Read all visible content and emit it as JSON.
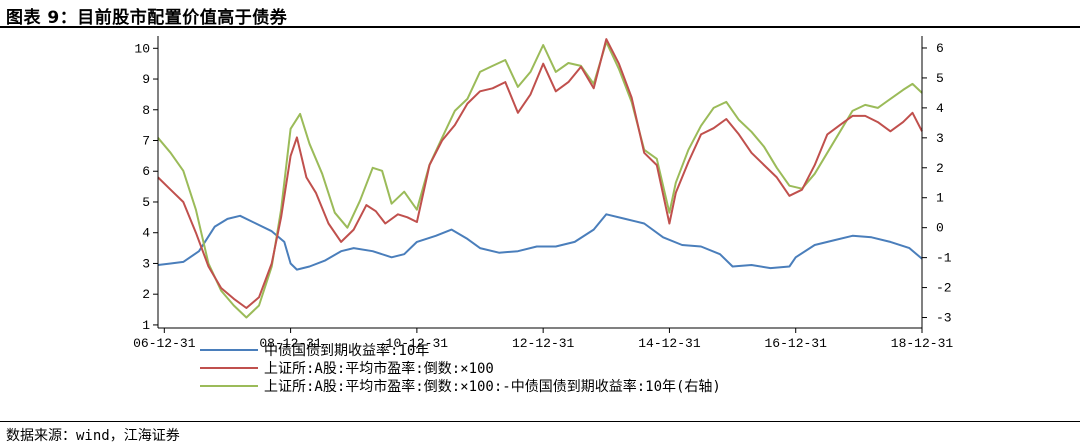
{
  "figure": {
    "title": "图表 9：目前股市配置价值高于债券",
    "source": "数据来源：wind，江海证券"
  },
  "chart_data": {
    "type": "line",
    "x_tick_labels": [
      "06-12-31",
      "08-12-31",
      "10-12-31",
      "12-12-31",
      "14-12-31",
      "16-12-31",
      "18-12-31"
    ],
    "x_tick_values": [
      2007.0,
      2009.0,
      2011.0,
      2013.0,
      2015.0,
      2017.0,
      2019.0
    ],
    "xlim": [
      2006.9,
      2019.0
    ],
    "left_axis": {
      "ticks": [
        1,
        2,
        3,
        4,
        5,
        6,
        7,
        8,
        9,
        10
      ],
      "ylim": [
        0.9,
        10.4
      ]
    },
    "right_axis": {
      "ticks": [
        -3,
        -2,
        -1,
        0,
        1,
        2,
        3,
        4,
        5,
        6
      ],
      "ylim": [
        -3.35,
        6.4
      ]
    },
    "legend_position": "bottom",
    "series": [
      {
        "name": "中债国债到期收益率:10年",
        "color": "#4a7ebb",
        "axis": "left",
        "points": [
          [
            2006.9,
            2.95
          ],
          [
            2007.1,
            3.0
          ],
          [
            2007.3,
            3.05
          ],
          [
            2007.55,
            3.4
          ],
          [
            2007.8,
            4.2
          ],
          [
            2008.0,
            4.45
          ],
          [
            2008.2,
            4.55
          ],
          [
            2008.45,
            4.3
          ],
          [
            2008.7,
            4.05
          ],
          [
            2008.9,
            3.7
          ],
          [
            2009.0,
            3.0
          ],
          [
            2009.1,
            2.8
          ],
          [
            2009.3,
            2.9
          ],
          [
            2009.55,
            3.1
          ],
          [
            2009.8,
            3.4
          ],
          [
            2010.0,
            3.5
          ],
          [
            2010.3,
            3.4
          ],
          [
            2010.6,
            3.2
          ],
          [
            2010.8,
            3.3
          ],
          [
            2011.0,
            3.7
          ],
          [
            2011.3,
            3.9
          ],
          [
            2011.55,
            4.1
          ],
          [
            2011.8,
            3.8
          ],
          [
            2012.0,
            3.5
          ],
          [
            2012.3,
            3.35
          ],
          [
            2012.6,
            3.4
          ],
          [
            2012.9,
            3.55
          ],
          [
            2013.2,
            3.55
          ],
          [
            2013.5,
            3.7
          ],
          [
            2013.8,
            4.1
          ],
          [
            2014.0,
            4.6
          ],
          [
            2014.3,
            4.45
          ],
          [
            2014.6,
            4.3
          ],
          [
            2014.9,
            3.85
          ],
          [
            2015.2,
            3.6
          ],
          [
            2015.5,
            3.55
          ],
          [
            2015.8,
            3.3
          ],
          [
            2016.0,
            2.9
          ],
          [
            2016.3,
            2.95
          ],
          [
            2016.6,
            2.85
          ],
          [
            2016.9,
            2.9
          ],
          [
            2017.0,
            3.2
          ],
          [
            2017.3,
            3.6
          ],
          [
            2017.6,
            3.75
          ],
          [
            2017.9,
            3.9
          ],
          [
            2018.2,
            3.85
          ],
          [
            2018.5,
            3.7
          ],
          [
            2018.8,
            3.5
          ],
          [
            2019.0,
            3.15
          ]
        ]
      },
      {
        "name": "上证所:A股:平均市盈率:倒数:×100",
        "color": "#c0504d",
        "axis": "left",
        "points": [
          [
            2006.9,
            5.8
          ],
          [
            2007.1,
            5.4
          ],
          [
            2007.3,
            5.0
          ],
          [
            2007.5,
            4.0
          ],
          [
            2007.7,
            2.9
          ],
          [
            2007.9,
            2.2
          ],
          [
            2008.1,
            1.85
          ],
          [
            2008.3,
            1.55
          ],
          [
            2008.5,
            1.9
          ],
          [
            2008.7,
            3.0
          ],
          [
            2008.85,
            4.5
          ],
          [
            2009.0,
            6.5
          ],
          [
            2009.1,
            7.1
          ],
          [
            2009.25,
            5.8
          ],
          [
            2009.4,
            5.3
          ],
          [
            2009.6,
            4.3
          ],
          [
            2009.8,
            3.7
          ],
          [
            2010.0,
            4.1
          ],
          [
            2010.2,
            4.9
          ],
          [
            2010.35,
            4.7
          ],
          [
            2010.5,
            4.3
          ],
          [
            2010.7,
            4.6
          ],
          [
            2010.85,
            4.5
          ],
          [
            2011.0,
            4.35
          ],
          [
            2011.2,
            6.2
          ],
          [
            2011.4,
            7.0
          ],
          [
            2011.6,
            7.5
          ],
          [
            2011.8,
            8.2
          ],
          [
            2012.0,
            8.6
          ],
          [
            2012.2,
            8.7
          ],
          [
            2012.4,
            8.9
          ],
          [
            2012.6,
            7.9
          ],
          [
            2012.8,
            8.5
          ],
          [
            2013.0,
            9.5
          ],
          [
            2013.2,
            8.6
          ],
          [
            2013.4,
            8.9
          ],
          [
            2013.6,
            9.4
          ],
          [
            2013.8,
            8.7
          ],
          [
            2014.0,
            10.3
          ],
          [
            2014.2,
            9.5
          ],
          [
            2014.4,
            8.4
          ],
          [
            2014.6,
            6.6
          ],
          [
            2014.8,
            6.2
          ],
          [
            2015.0,
            4.3
          ],
          [
            2015.1,
            5.3
          ],
          [
            2015.3,
            6.3
          ],
          [
            2015.5,
            7.2
          ],
          [
            2015.7,
            7.4
          ],
          [
            2015.9,
            7.7
          ],
          [
            2016.1,
            7.2
          ],
          [
            2016.3,
            6.6
          ],
          [
            2016.5,
            6.2
          ],
          [
            2016.7,
            5.8
          ],
          [
            2016.9,
            5.2
          ],
          [
            2017.1,
            5.4
          ],
          [
            2017.3,
            6.2
          ],
          [
            2017.5,
            7.2
          ],
          [
            2017.7,
            7.5
          ],
          [
            2017.9,
            7.8
          ],
          [
            2018.1,
            7.8
          ],
          [
            2018.3,
            7.6
          ],
          [
            2018.5,
            7.3
          ],
          [
            2018.7,
            7.6
          ],
          [
            2018.85,
            7.9
          ],
          [
            2019.0,
            7.3
          ]
        ]
      },
      {
        "name": "上证所:A股:平均市盈率:倒数:×100:-中债国债到期收益率:10年(右轴)",
        "color": "#9bbb59",
        "axis": "right",
        "points": [
          [
            2006.9,
            3.0
          ],
          [
            2007.1,
            2.5
          ],
          [
            2007.3,
            1.9
          ],
          [
            2007.5,
            0.6
          ],
          [
            2007.7,
            -1.2
          ],
          [
            2007.9,
            -2.1
          ],
          [
            2008.1,
            -2.6
          ],
          [
            2008.3,
            -3.0
          ],
          [
            2008.5,
            -2.6
          ],
          [
            2008.7,
            -1.3
          ],
          [
            2008.85,
            0.6
          ],
          [
            2009.0,
            3.3
          ],
          [
            2009.15,
            3.8
          ],
          [
            2009.3,
            2.8
          ],
          [
            2009.5,
            1.8
          ],
          [
            2009.7,
            0.5
          ],
          [
            2009.9,
            0.0
          ],
          [
            2010.1,
            0.9
          ],
          [
            2010.3,
            2.0
          ],
          [
            2010.45,
            1.9
          ],
          [
            2010.6,
            0.8
          ],
          [
            2010.8,
            1.2
          ],
          [
            2011.0,
            0.6
          ],
          [
            2011.2,
            2.1
          ],
          [
            2011.4,
            3.0
          ],
          [
            2011.6,
            3.9
          ],
          [
            2011.8,
            4.3
          ],
          [
            2012.0,
            5.2
          ],
          [
            2012.2,
            5.4
          ],
          [
            2012.4,
            5.6
          ],
          [
            2012.6,
            4.7
          ],
          [
            2012.8,
            5.2
          ],
          [
            2013.0,
            6.1
          ],
          [
            2013.2,
            5.2
          ],
          [
            2013.4,
            5.5
          ],
          [
            2013.6,
            5.4
          ],
          [
            2013.8,
            4.8
          ],
          [
            2014.0,
            6.2
          ],
          [
            2014.2,
            5.3
          ],
          [
            2014.4,
            4.2
          ],
          [
            2014.6,
            2.6
          ],
          [
            2014.8,
            2.3
          ],
          [
            2015.0,
            0.5
          ],
          [
            2015.1,
            1.5
          ],
          [
            2015.3,
            2.6
          ],
          [
            2015.5,
            3.4
          ],
          [
            2015.7,
            4.0
          ],
          [
            2015.9,
            4.2
          ],
          [
            2016.1,
            3.6
          ],
          [
            2016.3,
            3.2
          ],
          [
            2016.5,
            2.7
          ],
          [
            2016.7,
            2.0
          ],
          [
            2016.9,
            1.4
          ],
          [
            2017.1,
            1.3
          ],
          [
            2017.3,
            1.8
          ],
          [
            2017.5,
            2.5
          ],
          [
            2017.7,
            3.2
          ],
          [
            2017.9,
            3.9
          ],
          [
            2018.1,
            4.1
          ],
          [
            2018.3,
            4.0
          ],
          [
            2018.5,
            4.3
          ],
          [
            2018.7,
            4.6
          ],
          [
            2018.85,
            4.8
          ],
          [
            2019.0,
            4.5
          ]
        ]
      }
    ]
  }
}
